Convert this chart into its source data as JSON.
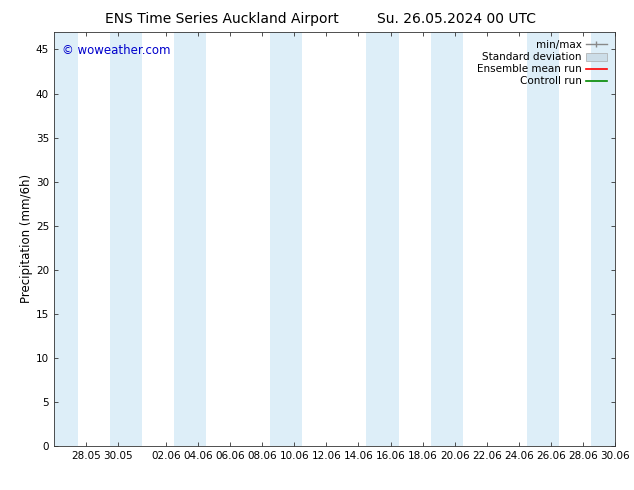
{
  "title_left": "ENS Time Series Auckland Airport",
  "title_right": "Su. 26.05.2024 00 UTC",
  "ylabel": "Precipitation (mm/6h)",
  "watermark": "© woweather.com",
  "watermark_color": "#0000cc",
  "background_color": "#ffffff",
  "plot_bg_color": "#ffffff",
  "ylim": [
    0,
    47
  ],
  "yticks": [
    0,
    5,
    10,
    15,
    20,
    25,
    30,
    35,
    40,
    45
  ],
  "xtick_labels": [
    "28.05",
    "30.05",
    "02.06",
    "04.06",
    "06.06",
    "08.06",
    "10.06",
    "12.06",
    "14.06",
    "16.06",
    "18.06",
    "20.06",
    "22.06",
    "24.06",
    "26.06",
    "28.06",
    "30.06"
  ],
  "shade_color": "#ddeef8",
  "shade_alpha": 1.0,
  "legend_entries": [
    {
      "label": "min/max",
      "color": "#aaaaaa",
      "type": "errorbar"
    },
    {
      "label": "Standard deviation",
      "color": "#ccddee",
      "type": "box"
    },
    {
      "label": "Ensemble mean run",
      "color": "#ff0000",
      "type": "line"
    },
    {
      "label": "Controll run",
      "color": "#008800",
      "type": "line"
    }
  ],
  "font_size_title": 10,
  "font_size_ticks": 7.5,
  "font_size_ylabel": 8.5,
  "font_size_legend": 7.5,
  "font_size_watermark": 8.5,
  "xlim_start": 0,
  "xlim_end": 35,
  "xtick_positions": [
    2,
    4,
    7,
    9,
    11,
    13,
    15,
    17,
    19,
    21,
    23,
    25,
    27,
    29,
    31,
    33,
    35
  ]
}
